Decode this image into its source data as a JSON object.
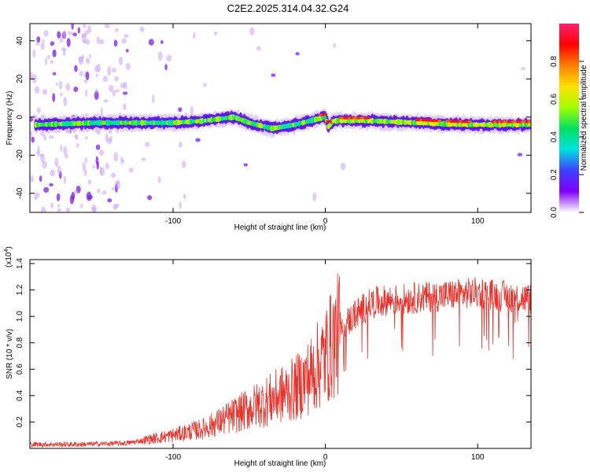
{
  "title": "C2E2.2025.314.04.32.G24",
  "colors": {
    "snr_line": "#e8332d",
    "colormap": [
      "#ffffff",
      "#8000ff",
      "#4040ff",
      "#00e0e0",
      "#00e060",
      "#a0ff00",
      "#ffe000",
      "#ff8000",
      "#ff0000",
      "#ff2070"
    ]
  },
  "chart_data": [
    {
      "id": "spectrogram",
      "type": "heatmap",
      "title": "C2E2.2025.314.04.32.G24",
      "xlabel": "Height of straight line (km)",
      "ylabel": "Frequency (Hz)",
      "xlim": [
        -194,
        135
      ],
      "ylim": [
        -50,
        49
      ],
      "xticks": [
        -100,
        0,
        100
      ],
      "yticks": [
        -40,
        -20,
        0,
        20,
        40
      ],
      "colorbar": {
        "label": "Normalized spectral amplitude",
        "range": [
          0,
          1
        ],
        "ticks": [
          0.0,
          0.2,
          0.4,
          0.6,
          0.8
        ]
      },
      "ridge": {
        "description_points": [
          [
            -188,
            -4
          ],
          [
            -150,
            -3
          ],
          [
            -100,
            -3
          ],
          [
            -80,
            -2
          ],
          [
            -60,
            0
          ],
          [
            -50,
            -3
          ],
          [
            -35,
            -6
          ],
          [
            -20,
            -4
          ],
          [
            -5,
            -1
          ],
          [
            0,
            0
          ],
          [
            2,
            -5
          ],
          [
            5,
            -2
          ],
          [
            10,
            -2
          ],
          [
            30,
            -2
          ],
          [
            60,
            -3
          ],
          [
            90,
            -4
          ],
          [
            135,
            -4
          ]
        ]
      }
    },
    {
      "id": "snr",
      "type": "line",
      "xlabel": "Height of straight line (km)",
      "ylabel": "SNR (10 * v/v)",
      "multiplier": "(x10",
      "multiplier_exp": "4",
      "multiplier_close": ")",
      "xlim": [
        -194,
        135
      ],
      "ylim": [
        0,
        1.43
      ],
      "xticks": [
        -100,
        0,
        100
      ],
      "yticks": [
        0.2,
        0.4,
        0.6,
        0.8,
        1.0,
        1.2,
        1.4
      ],
      "ytick_labels": [
        "0.2",
        "0.4",
        "0.6",
        "0.8",
        "1.0",
        "1.2",
        "1.4"
      ],
      "trend": {
        "x": [
          -194,
          -160,
          -130,
          -120,
          -100,
          -80,
          -60,
          -40,
          -20,
          -10,
          0,
          5,
          10,
          20,
          30,
          40,
          60,
          80,
          100,
          120,
          135
        ],
        "y": [
          0.03,
          0.03,
          0.04,
          0.06,
          0.1,
          0.15,
          0.25,
          0.35,
          0.45,
          0.55,
          0.7,
          0.8,
          0.9,
          1.02,
          1.1,
          1.12,
          1.14,
          1.16,
          1.18,
          1.15,
          1.13
        ]
      }
    }
  ]
}
